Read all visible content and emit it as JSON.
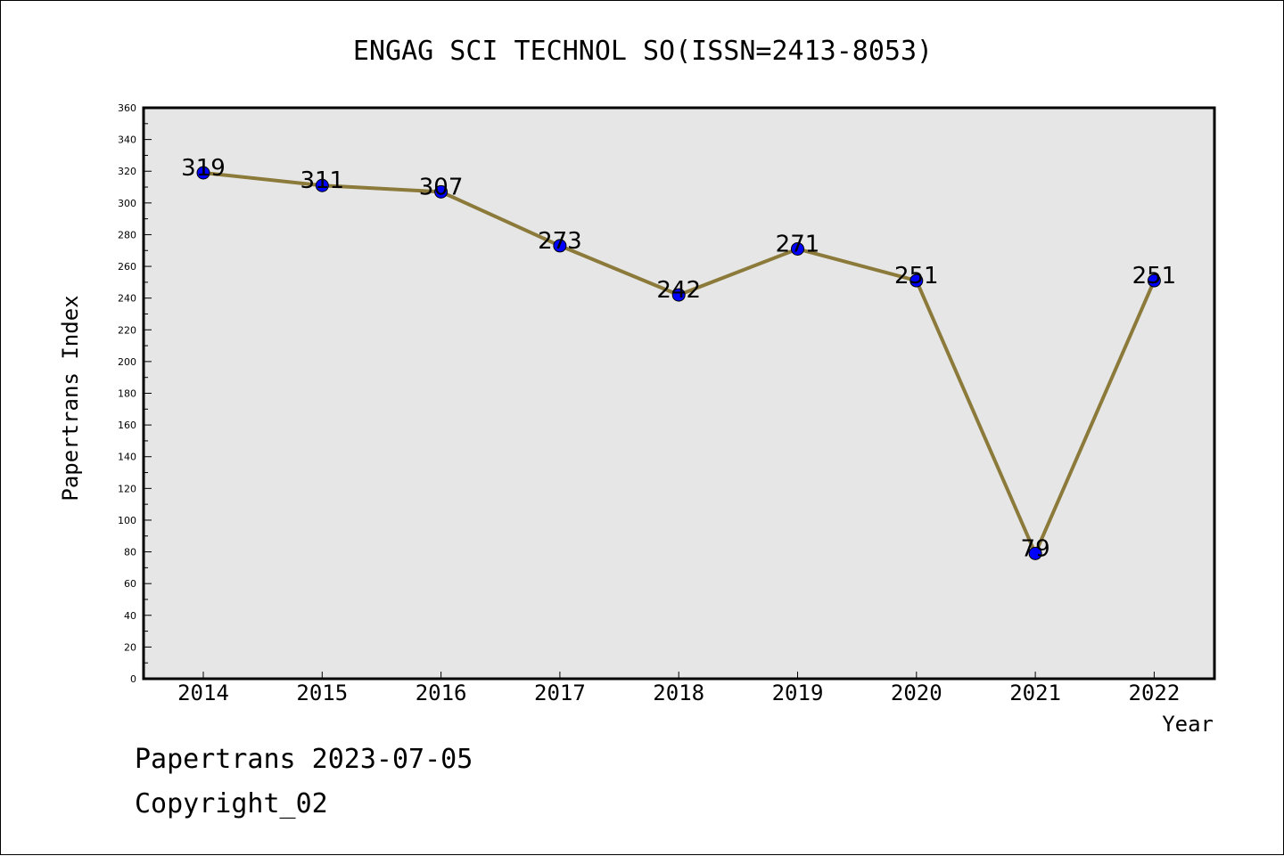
{
  "chart_data": {
    "type": "line",
    "title": "ENGAG SCI TECHNOL SO(ISSN=2413-8053)",
    "xlabel": "Year",
    "ylabel": "Papertrans Index",
    "categories": [
      "2014",
      "2015",
      "2016",
      "2017",
      "2018",
      "2019",
      "2020",
      "2021",
      "2022"
    ],
    "series": [
      {
        "values": [
          319,
          311,
          307,
          273,
          242,
          271,
          251,
          79,
          251
        ]
      }
    ],
    "ylim": [
      0,
      360
    ],
    "yticks": [
      0,
      20,
      40,
      60,
      80,
      100,
      120,
      140,
      160,
      180,
      200,
      220,
      240,
      260,
      280,
      300,
      320,
      340,
      360
    ],
    "grid": false,
    "data_labels": true,
    "colors": {
      "line": "#8b7a3a",
      "marker": "#0000ff",
      "plot_background": "#e6e6e6"
    }
  },
  "footer": {
    "line1": "Papertrans 2023-07-05",
    "line2": "Copyright_02"
  }
}
